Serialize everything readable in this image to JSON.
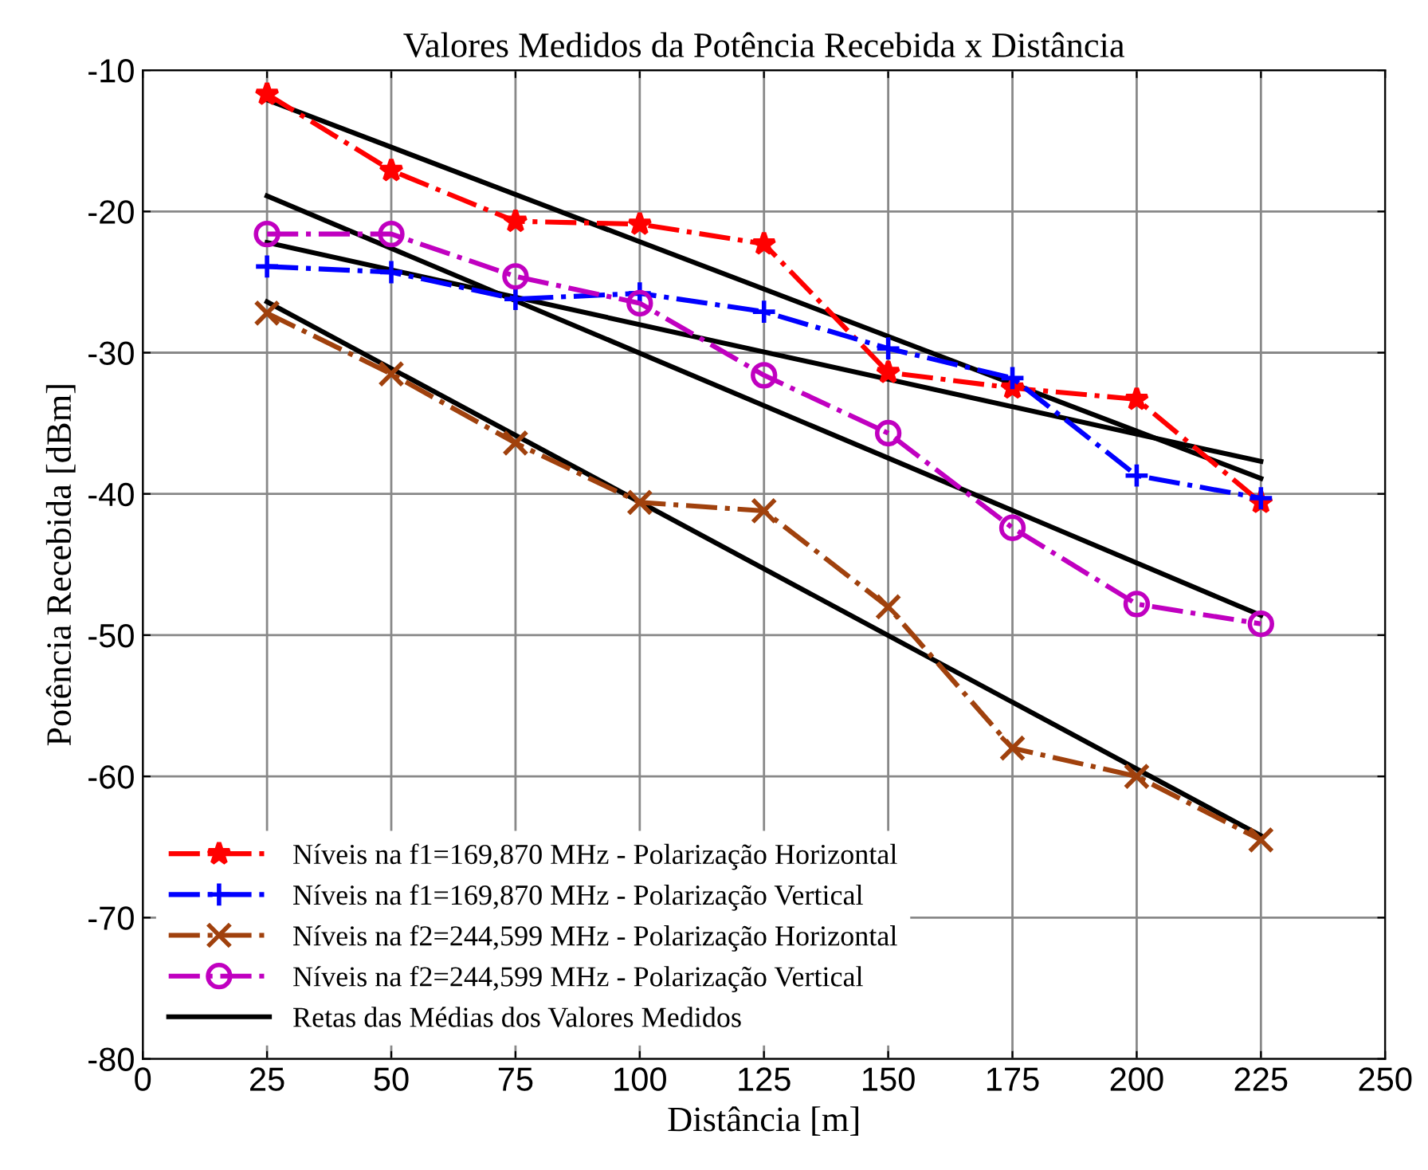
{
  "chart_data": {
    "type": "line",
    "title": "Valores Medidos da Potência Recebida x Distância",
    "xlabel": "Distância [m]",
    "ylabel": "Potência Recebida [dBm]",
    "x": [
      25,
      50,
      75,
      100,
      125,
      150,
      175,
      200,
      225
    ],
    "xlim": [
      0,
      250
    ],
    "xticks": [
      0,
      25,
      50,
      75,
      100,
      125,
      150,
      175,
      200,
      225,
      250
    ],
    "ylim": [
      -80,
      -10
    ],
    "yticks": [
      -80,
      -70,
      -60,
      -50,
      -40,
      -30,
      -20,
      -10
    ],
    "grid": true,
    "legend": "bottom left",
    "series": [
      {
        "name": "Níveis na f1=169,870 MHz - Polarização Horizontal",
        "color": "#ff0000",
        "marker": "star",
        "line_style": "dashdot",
        "values": [
          -11.7,
          -17.1,
          -20.7,
          -20.9,
          -22.3,
          -31.4,
          -32.5,
          -33.3,
          -40.6
        ]
      },
      {
        "name": "Níveis na f1=169,870 MHz - Polarização Vertical",
        "color": "#0000ff",
        "marker": "plus",
        "line_style": "dashdot",
        "values": [
          -23.9,
          -24.3,
          -26.2,
          -25.8,
          -27.1,
          -29.7,
          -31.8,
          -38.7,
          -40.3
        ]
      },
      {
        "name": "Níveis na f2=244,599 MHz - Polarização Horizontal",
        "color": "#a0410d",
        "marker": "cross",
        "line_style": "dashdot",
        "values": [
          -27.2,
          -31.5,
          -36.4,
          -40.6,
          -41.2,
          -48.0,
          -58.0,
          -60.0,
          -64.5
        ]
      },
      {
        "name": "Níveis na f2=244,599 MHz - Polarização Vertical",
        "color": "#c000c0",
        "marker": "circle",
        "line_style": "dashdot",
        "values": [
          -21.6,
          -21.6,
          -24.6,
          -26.5,
          -31.6,
          -35.7,
          -42.4,
          -47.8,
          -49.2
        ]
      },
      {
        "name": "Retas das Médias dos Valores Medidos",
        "color": "#000000",
        "marker": "none",
        "line_style": "solid",
        "values": [
          -12.1,
          null,
          null,
          null,
          null,
          null,
          null,
          null,
          -38.9
        ]
      },
      {
        "color": "#000000",
        "marker": "none",
        "line_style": "solid",
        "values": [
          -22.2,
          null,
          null,
          null,
          null,
          null,
          null,
          null,
          -37.7
        ]
      },
      {
        "color": "#000000",
        "marker": "none",
        "line_style": "solid",
        "values": [
          -26.4,
          null,
          null,
          null,
          null,
          null,
          null,
          null,
          -64.2
        ]
      },
      {
        "color": "#000000",
        "marker": "none",
        "line_style": "solid",
        "values": [
          -18.9,
          null,
          null,
          null,
          null,
          null,
          null,
          null,
          -48.6
        ]
      }
    ]
  }
}
